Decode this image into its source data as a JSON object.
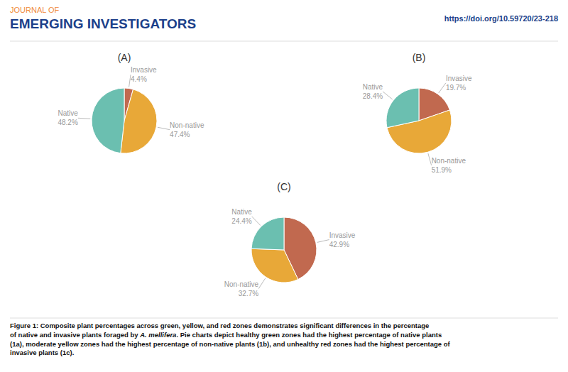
{
  "header": {
    "journal": {
      "text": "JOURNAL OF",
      "color": "#F08C3C"
    },
    "title": {
      "text": "EMERGING INVESTIGATORS",
      "color": "#1B3F8A"
    },
    "doi": {
      "text": "https://doi.org/10.59720/23-218",
      "color": "#1B3F8A"
    }
  },
  "chart_data": [
    {
      "type": "pie",
      "title": "(A)",
      "categories": [
        "Invasive",
        "Non-native",
        "Native"
      ],
      "values": [
        4.4,
        47.4,
        48.2
      ],
      "value_labels": [
        "4.4%",
        "47.4%",
        "48.2%"
      ],
      "colors": [
        "#C1694F",
        "#E8A838",
        "#6BBFB0"
      ]
    },
    {
      "type": "pie",
      "title": "(B)",
      "categories": [
        "Invasive",
        "Non-native",
        "Native"
      ],
      "values": [
        19.7,
        51.9,
        28.4
      ],
      "value_labels": [
        "19.7%",
        "51.9%",
        "28.4%"
      ],
      "colors": [
        "#C1694F",
        "#E8A838",
        "#6BBFB0"
      ]
    },
    {
      "type": "pie",
      "title": "(C)",
      "categories": [
        "Invasive",
        "Non-native",
        "Native"
      ],
      "values": [
        42.9,
        32.7,
        24.4
      ],
      "value_labels": [
        "42.9%",
        "32.7%",
        "24.4%"
      ],
      "colors": [
        "#C1694F",
        "#E8A838",
        "#6BBFB0"
      ]
    }
  ],
  "caption": [
    [
      {
        "text": "Figure 1: Composite plant percentages across green, yellow, and red zones demonstrates significant differences in the percentage",
        "italic": false
      }
    ],
    [
      {
        "text": "of native and invasive plants foraged by ",
        "italic": false
      },
      {
        "text": "A. mellifera",
        "italic": true
      },
      {
        "text": ". Pie charts depict healthy green zones had the highest percentage of native plants",
        "italic": false
      }
    ],
    [
      {
        "text": "(1a), moderate yellow zones had the highest percentage of non-native plants (1b), and unhealthy red zones had the highest percentage of",
        "italic": false
      }
    ],
    [
      {
        "text": "invasive plants (1c).",
        "italic": false
      }
    ]
  ]
}
